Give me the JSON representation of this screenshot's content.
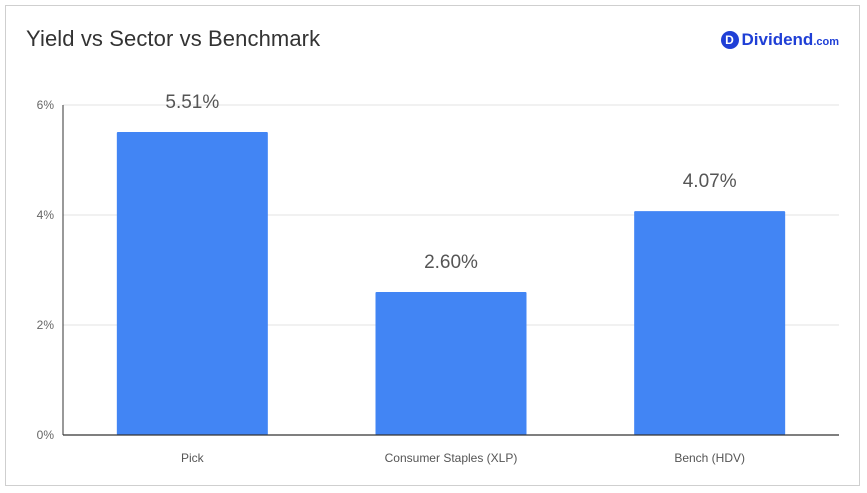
{
  "header": {
    "title": "Yield vs Sector vs Benchmark",
    "brand_name": "Dividend",
    "brand_tld": ".com",
    "brand_logo_letter": "D",
    "brand_color": "#1f3fd6"
  },
  "chart_data": {
    "type": "bar",
    "title": "Yield vs Sector vs Benchmark",
    "categories": [
      "Pick",
      "Consumer Staples (XLP)",
      "Bench (HDV)"
    ],
    "values": [
      5.51,
      2.6,
      4.07
    ],
    "value_labels": [
      "5.51%",
      "2.60%",
      "4.07%"
    ],
    "xlabel": "",
    "ylabel": "",
    "ylim": [
      0,
      6
    ],
    "yticks": [
      0,
      2,
      4,
      6
    ],
    "ytick_labels": [
      "0%",
      "2%",
      "4%",
      "6%"
    ],
    "grid": true,
    "legend": "none",
    "bar_color": "#4285f4"
  }
}
